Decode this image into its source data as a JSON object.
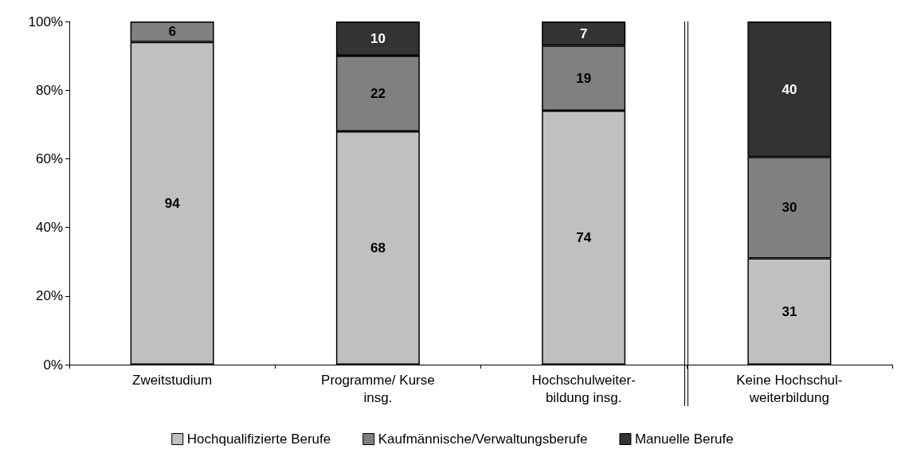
{
  "chart_data": {
    "type": "bar",
    "stacked": true,
    "categories": [
      "Zweitstudium",
      "Programme/ Kurse\ninsg.",
      "Hochschulweiter-\nbildung insg.",
      "Keine Hochschul-\nweiterbildung"
    ],
    "series": [
      {
        "name": "Hochqualifizierte Berufe",
        "color": "#c0c0c0",
        "values": [
          94,
          68,
          74,
          31
        ],
        "value_labels": [
          "94",
          "68",
          "74",
          "31"
        ]
      },
      {
        "name": "Kaufmännische/Verwaltungsberufe",
        "color": "#808080",
        "values": [
          6,
          22,
          19,
          29.5
        ],
        "value_labels": [
          "6",
          "22",
          "19",
          "30"
        ]
      },
      {
        "name": "Manuelle Berufe",
        "color": "#333333",
        "values": [
          null,
          10,
          7,
          39.5
        ],
        "value_labels": [
          null,
          "10",
          "7",
          "40"
        ]
      }
    ],
    "ylim": [
      0,
      100
    ],
    "yticks": [
      {
        "value": 0,
        "label": "0%"
      },
      {
        "value": 20,
        "label": "20%"
      },
      {
        "value": 40,
        "label": "40%"
      },
      {
        "value": 60,
        "label": "60%"
      },
      {
        "value": 80,
        "label": "80%"
      },
      {
        "value": 100,
        "label": "100%"
      }
    ],
    "grid": false,
    "legend": "bottom"
  }
}
